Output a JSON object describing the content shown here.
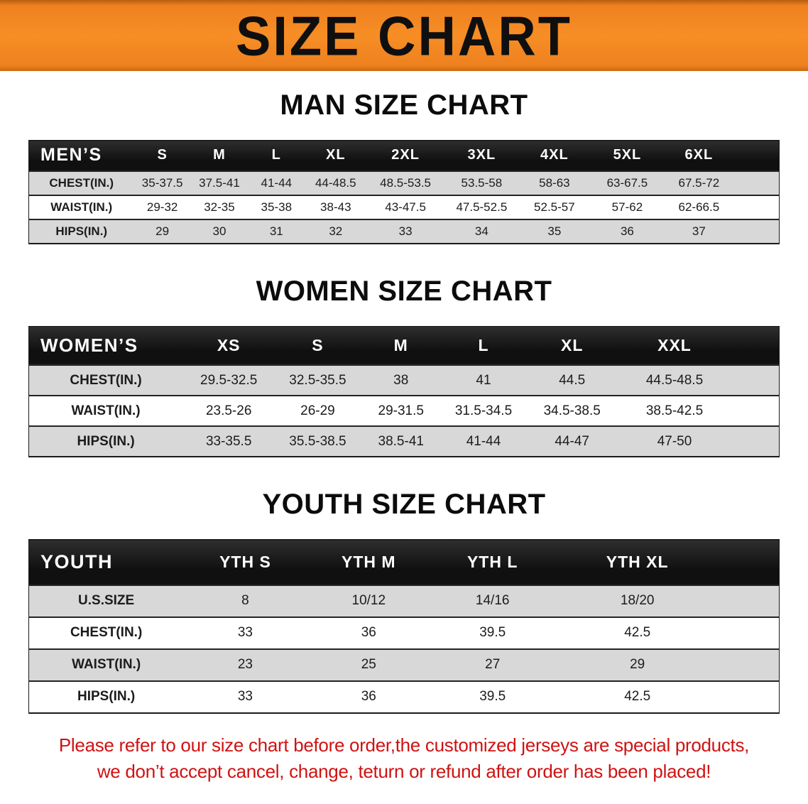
{
  "banner": {
    "title": "SIZE CHART"
  },
  "tables": [
    {
      "heading": "MAN SIZE CHART",
      "header": [
        "MEN’S",
        "S",
        "M",
        "L",
        "XL",
        "2XL",
        "3XL",
        "4XL",
        "5XL",
        "6XL"
      ],
      "rows": [
        [
          "CHEST(IN.)",
          "35-37.5",
          "37.5-41",
          "41-44",
          "44-48.5",
          "48.5-53.5",
          "53.5-58",
          "58-63",
          "63-67.5",
          "67.5-72"
        ],
        [
          "WAIST(IN.)",
          "29-32",
          "32-35",
          "35-38",
          "38-43",
          "43-47.5",
          "47.5-52.5",
          "52.5-57",
          "57-62",
          "62-66.5"
        ],
        [
          "HIPS(IN.)",
          "29",
          "30",
          "31",
          "32",
          "33",
          "34",
          "35",
          "36",
          "37"
        ]
      ]
    },
    {
      "heading": "WOMEN SIZE CHART",
      "header": [
        "WOMEN’S",
        "XS",
        "S",
        "M",
        "L",
        "XL",
        "XXL"
      ],
      "rows": [
        [
          "CHEST(IN.)",
          "29.5-32.5",
          "32.5-35.5",
          "38",
          "41",
          "44.5",
          "44.5-48.5"
        ],
        [
          "WAIST(IN.)",
          "23.5-26",
          "26-29",
          "29-31.5",
          "31.5-34.5",
          "34.5-38.5",
          "38.5-42.5"
        ],
        [
          "HIPS(IN.)",
          "33-35.5",
          "35.5-38.5",
          "38.5-41",
          "41-44",
          "44-47",
          "47-50"
        ]
      ]
    },
    {
      "heading": "YOUTH SIZE CHART",
      "header": [
        "YOUTH",
        "YTH S",
        "YTH M",
        "YTH L",
        "YTH XL"
      ],
      "rows": [
        [
          "U.S.SIZE",
          "8",
          "10/12",
          "14/16",
          "18/20"
        ],
        [
          "CHEST(IN.)",
          "33",
          "36",
          "39.5",
          "42.5"
        ],
        [
          "WAIST(IN.)",
          "23",
          "25",
          "27",
          "29"
        ],
        [
          "HIPS(IN.)",
          "33",
          "36",
          "39.5",
          "42.5"
        ]
      ]
    }
  ],
  "notice": {
    "line1": "Please refer to our size chart before order,the customized jerseys are special products,",
    "line2": "we don’t accept cancel, change, teturn or refund after order has been placed!"
  },
  "colors": {
    "banner_orange": "#f28a20",
    "header_black": "#141414",
    "row_gray": "#d8d8d8",
    "notice_red": "#d01212"
  }
}
